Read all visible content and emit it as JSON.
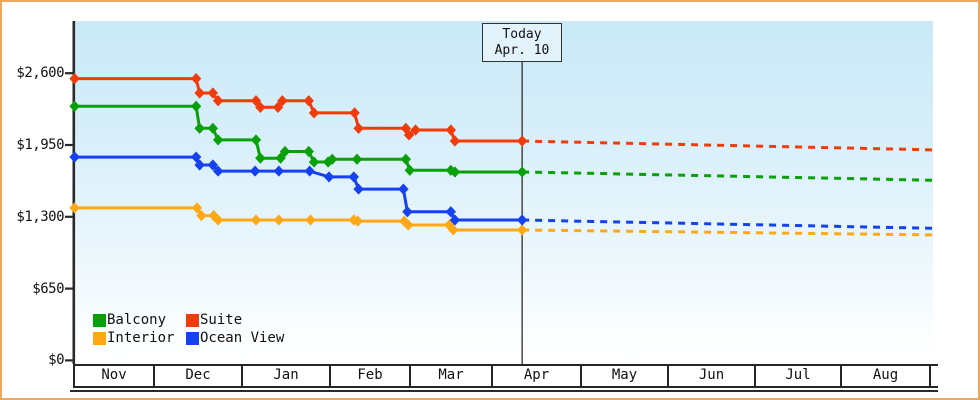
{
  "page": {
    "border_color": "#eba85e"
  },
  "today_marker": {
    "line1": "Today",
    "line2": "Apr. 10"
  },
  "legend": {
    "items": [
      {
        "label": "Balcony",
        "color": "#0aa00a"
      },
      {
        "label": "Suite",
        "color": "#f03c0a"
      },
      {
        "label": "Interior",
        "color": "#ffa816"
      },
      {
        "label": "Ocean View",
        "color": "#1641f0"
      }
    ]
  },
  "chart_data": {
    "type": "line",
    "title": "",
    "xlabel": "",
    "ylabel": "",
    "x_axis": {
      "months": [
        "Nov",
        "Dec",
        "Jan",
        "Feb",
        "Mar",
        "Apr",
        "May",
        "Jun",
        "Jul",
        "Aug"
      ]
    },
    "y_axis": {
      "ticks": [
        {
          "label": "$0",
          "value": 0
        },
        {
          "label": "$650",
          "value": 650
        },
        {
          "label": "$1,300",
          "value": 1300
        },
        {
          "label": "$1,950",
          "value": 1950
        },
        {
          "label": "$2,600",
          "value": 2600
        }
      ],
      "min": 0,
      "max": 2600
    },
    "grid": false,
    "legend_position": "bottom-left-inside",
    "today": {
      "label": "Today",
      "date": "Apr. 10",
      "u": 5.35
    },
    "note": "x coordinate u = months since Nov 1 (Nov=0 .. Aug=9..10); solid = history, dashed = forecast after Today",
    "series": [
      {
        "name": "Interior",
        "color": "#ffa816",
        "forecast_end_price": 1135,
        "points": [
          [
            0.02,
            1380
          ],
          [
            1.5,
            1380
          ],
          [
            1.55,
            1310
          ],
          [
            1.69,
            1310
          ],
          [
            1.74,
            1270
          ],
          [
            2.17,
            1270
          ],
          [
            2.43,
            1270
          ],
          [
            2.79,
            1270
          ],
          [
            3.31,
            1270
          ],
          [
            3.36,
            1260
          ],
          [
            3.94,
            1260
          ],
          [
            3.99,
            1225
          ],
          [
            4.49,
            1225
          ],
          [
            4.54,
            1180
          ],
          [
            5.35,
            1180
          ]
        ]
      },
      {
        "name": "Ocean View",
        "color": "#1641f0",
        "forecast_end_price": 1195,
        "points": [
          [
            0.02,
            1840
          ],
          [
            1.49,
            1840
          ],
          [
            1.53,
            1768
          ],
          [
            1.68,
            1768
          ],
          [
            1.74,
            1713
          ],
          [
            2.16,
            1713
          ],
          [
            2.43,
            1713
          ],
          [
            2.78,
            1713
          ],
          [
            3.0,
            1660
          ],
          [
            3.31,
            1660
          ],
          [
            3.37,
            1550
          ],
          [
            3.93,
            1550
          ],
          [
            3.98,
            1345
          ],
          [
            4.51,
            1345
          ],
          [
            4.56,
            1270
          ],
          [
            5.35,
            1270
          ]
        ]
      },
      {
        "name": "Balcony",
        "color": "#0aa00a",
        "forecast_end_price": 1630,
        "points": [
          [
            0.02,
            2300
          ],
          [
            1.49,
            2300
          ],
          [
            1.53,
            2100
          ],
          [
            1.68,
            2100
          ],
          [
            1.74,
            1995
          ],
          [
            2.17,
            1995
          ],
          [
            2.22,
            1830
          ],
          [
            2.45,
            1830
          ],
          [
            2.5,
            1890
          ],
          [
            2.77,
            1890
          ],
          [
            2.83,
            1795
          ],
          [
            2.99,
            1795
          ],
          [
            3.04,
            1820
          ],
          [
            3.35,
            1820
          ],
          [
            3.96,
            1820
          ],
          [
            4.01,
            1720
          ],
          [
            4.51,
            1720
          ],
          [
            4.56,
            1705
          ],
          [
            5.35,
            1705
          ]
        ]
      },
      {
        "name": "Suite",
        "color": "#f03c0a",
        "forecast_end_price": 1905,
        "points": [
          [
            0.02,
            2550
          ],
          [
            1.49,
            2550
          ],
          [
            1.53,
            2420
          ],
          [
            1.68,
            2420
          ],
          [
            1.74,
            2350
          ],
          [
            2.17,
            2350
          ],
          [
            2.22,
            2290
          ],
          [
            2.42,
            2290
          ],
          [
            2.47,
            2350
          ],
          [
            2.77,
            2350
          ],
          [
            2.83,
            2240
          ],
          [
            3.32,
            2240
          ],
          [
            3.37,
            2100
          ],
          [
            3.96,
            2100
          ],
          [
            4.0,
            2040
          ],
          [
            4.08,
            2085
          ],
          [
            4.51,
            2085
          ],
          [
            4.56,
            1985
          ],
          [
            5.35,
            1985
          ]
        ]
      }
    ]
  }
}
